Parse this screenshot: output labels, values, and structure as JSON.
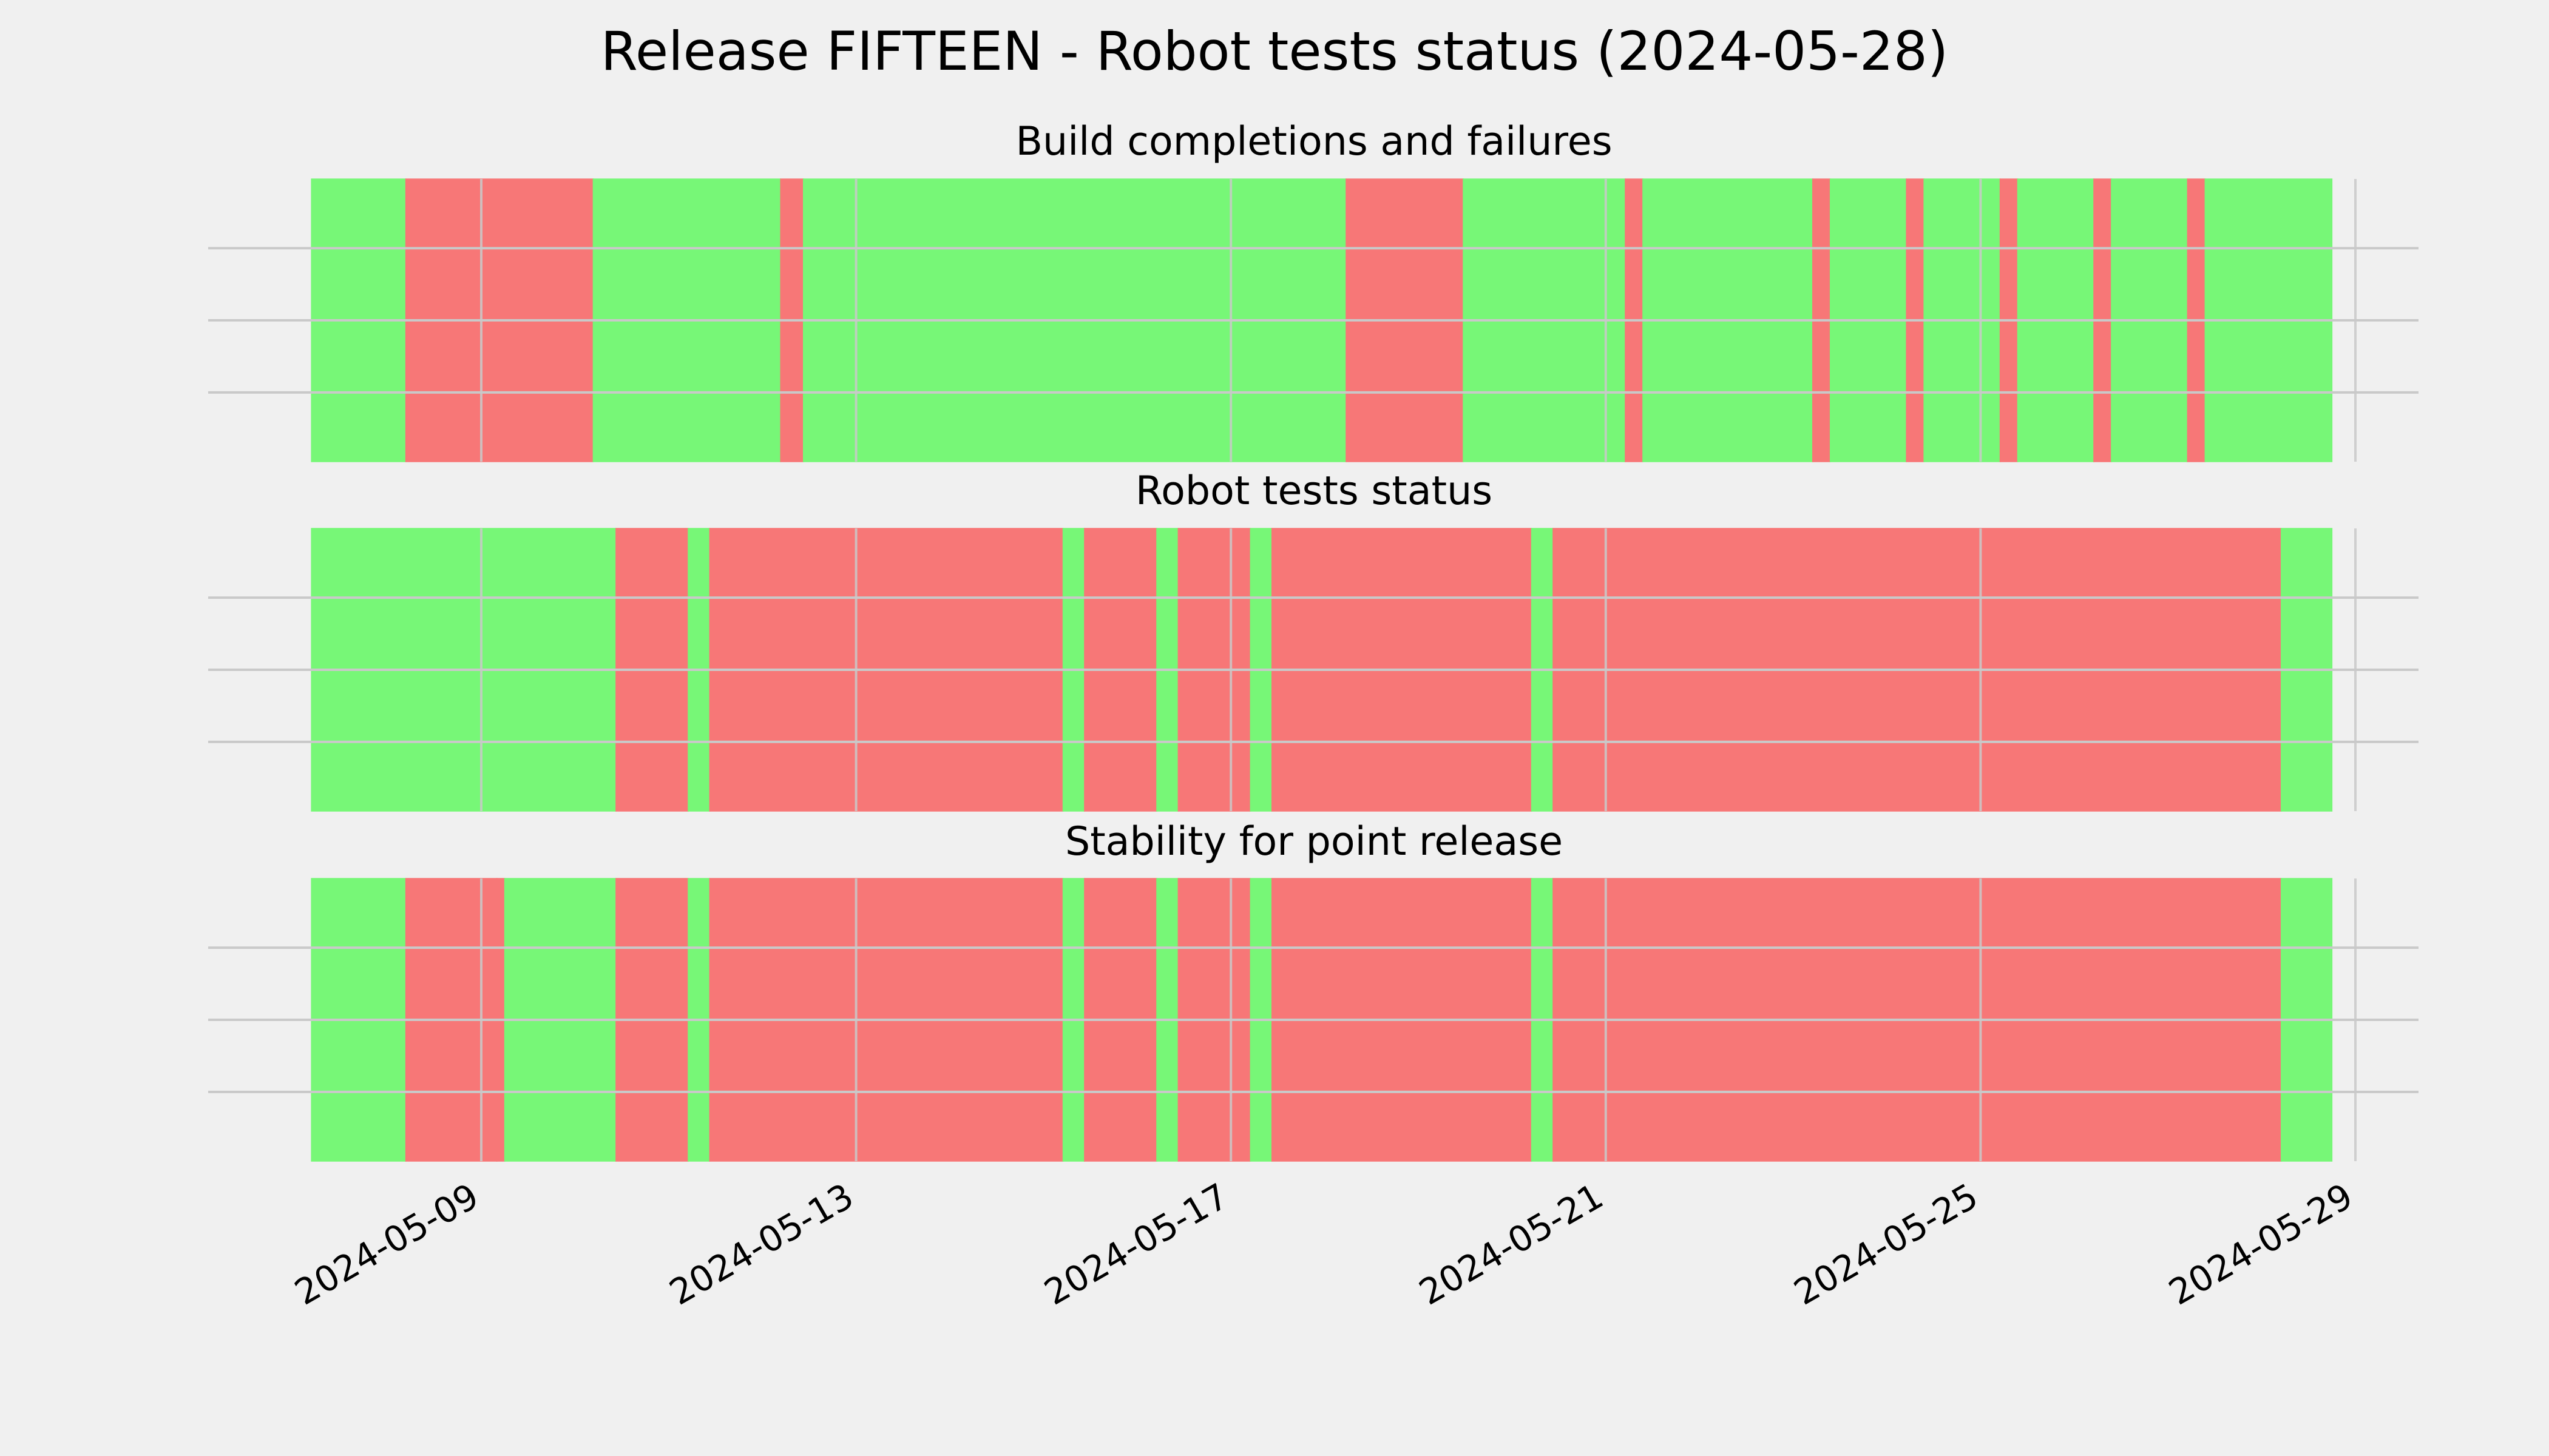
{
  "colors": {
    "pass": "#77f777",
    "fail": "#f77777",
    "background": "#f0f0f0",
    "grid": "#c9c9c9"
  },
  "chart_data": {
    "type": "timeline",
    "title": "Release FIFTEEN - Robot tests status (2024-05-28)",
    "x_ticks": [
      "2024-05-09",
      "2024-05-13",
      "2024-05-17",
      "2024-05-21",
      "2024-05-25",
      "2024-05-29"
    ],
    "x_range": [
      "2024-05-07T04:30",
      "2024-05-29T19:20"
    ],
    "grid": true,
    "panels": [
      {
        "title": "Build completions and failures",
        "segments": [
          {
            "start": "2024-05-07T04:30",
            "end": "2024-05-08T04:40",
            "status": "pass"
          },
          {
            "start": "2024-05-08T04:40",
            "end": "2024-05-10T04:40",
            "status": "fail"
          },
          {
            "start": "2024-05-10T04:40",
            "end": "2024-05-12T04:40",
            "status": "pass"
          },
          {
            "start": "2024-05-12T04:40",
            "end": "2024-05-12T10:30",
            "status": "fail"
          },
          {
            "start": "2024-05-12T10:30",
            "end": "2024-05-18T05:30",
            "status": "pass"
          },
          {
            "start": "2024-05-18T05:30",
            "end": "2024-05-19T11:30",
            "status": "fail"
          },
          {
            "start": "2024-05-19T11:30",
            "end": "2024-05-21T05:00",
            "status": "pass"
          },
          {
            "start": "2024-05-21T05:00",
            "end": "2024-05-21T09:30",
            "status": "fail"
          },
          {
            "start": "2024-05-21T09:30",
            "end": "2024-05-23T05:00",
            "status": "pass"
          },
          {
            "start": "2024-05-23T05:00",
            "end": "2024-05-23T09:30",
            "status": "fail"
          },
          {
            "start": "2024-05-23T09:30",
            "end": "2024-05-24T05:00",
            "status": "pass"
          },
          {
            "start": "2024-05-24T05:00",
            "end": "2024-05-24T09:30",
            "status": "fail"
          },
          {
            "start": "2024-05-24T09:30",
            "end": "2024-05-25T05:00",
            "status": "pass"
          },
          {
            "start": "2024-05-25T05:00",
            "end": "2024-05-25T09:30",
            "status": "fail"
          },
          {
            "start": "2024-05-25T09:30",
            "end": "2024-05-26T05:00",
            "status": "pass"
          },
          {
            "start": "2024-05-26T05:00",
            "end": "2024-05-26T09:30",
            "status": "fail"
          },
          {
            "start": "2024-05-26T09:30",
            "end": "2024-05-27T05:00",
            "status": "pass"
          },
          {
            "start": "2024-05-27T05:00",
            "end": "2024-05-27T09:30",
            "status": "fail"
          },
          {
            "start": "2024-05-27T09:30",
            "end": "2024-05-28T18:00",
            "status": "pass"
          }
        ]
      },
      {
        "title": "Robot tests status",
        "segments": [
          {
            "start": "2024-05-07T04:30",
            "end": "2024-05-10T10:30",
            "status": "pass"
          },
          {
            "start": "2024-05-10T10:30",
            "end": "2024-05-11T05:00",
            "status": "fail"
          },
          {
            "start": "2024-05-11T05:00",
            "end": "2024-05-11T10:30",
            "status": "pass"
          },
          {
            "start": "2024-05-11T10:30",
            "end": "2024-05-15T05:00",
            "status": "fail"
          },
          {
            "start": "2024-05-15T05:00",
            "end": "2024-05-15T10:30",
            "status": "pass"
          },
          {
            "start": "2024-05-15T10:30",
            "end": "2024-05-16T05:00",
            "status": "fail"
          },
          {
            "start": "2024-05-16T05:00",
            "end": "2024-05-16T10:30",
            "status": "pass"
          },
          {
            "start": "2024-05-16T10:30",
            "end": "2024-05-17T05:00",
            "status": "fail"
          },
          {
            "start": "2024-05-17T05:00",
            "end": "2024-05-17T10:30",
            "status": "pass"
          },
          {
            "start": "2024-05-17T10:30",
            "end": "2024-05-20T05:00",
            "status": "fail"
          },
          {
            "start": "2024-05-20T05:00",
            "end": "2024-05-20T10:30",
            "status": "pass"
          },
          {
            "start": "2024-05-20T10:30",
            "end": "2024-05-28T05:00",
            "status": "fail"
          },
          {
            "start": "2024-05-28T05:00",
            "end": "2024-05-28T18:00",
            "status": "pass"
          }
        ]
      },
      {
        "title": "Stability for point release",
        "segments": [
          {
            "start": "2024-05-07T04:30",
            "end": "2024-05-08T04:40",
            "status": "pass"
          },
          {
            "start": "2024-05-08T04:40",
            "end": "2024-05-09T04:00",
            "status": "fail"
          },
          {
            "start": "2024-05-09T04:00",
            "end": "2024-05-09T06:00",
            "status": "fail"
          },
          {
            "start": "2024-05-09T06:00",
            "end": "2024-05-10T10:30",
            "status": "pass"
          },
          {
            "start": "2024-05-10T10:30",
            "end": "2024-05-11T05:00",
            "status": "fail"
          },
          {
            "start": "2024-05-11T05:00",
            "end": "2024-05-11T10:30",
            "status": "pass"
          },
          {
            "start": "2024-05-11T10:30",
            "end": "2024-05-15T05:00",
            "status": "fail"
          },
          {
            "start": "2024-05-15T05:00",
            "end": "2024-05-15T10:30",
            "status": "pass"
          },
          {
            "start": "2024-05-15T10:30",
            "end": "2024-05-16T05:00",
            "status": "fail"
          },
          {
            "start": "2024-05-16T05:00",
            "end": "2024-05-16T10:30",
            "status": "pass"
          },
          {
            "start": "2024-05-16T10:30",
            "end": "2024-05-17T05:00",
            "status": "fail"
          },
          {
            "start": "2024-05-17T05:00",
            "end": "2024-05-17T10:30",
            "status": "pass"
          },
          {
            "start": "2024-05-17T10:30",
            "end": "2024-05-20T05:00",
            "status": "fail"
          },
          {
            "start": "2024-05-20T05:00",
            "end": "2024-05-20T10:30",
            "status": "pass"
          },
          {
            "start": "2024-05-20T10:30",
            "end": "2024-05-28T05:00",
            "status": "fail"
          },
          {
            "start": "2024-05-28T05:00",
            "end": "2024-05-28T18:00",
            "status": "pass"
          }
        ]
      }
    ]
  }
}
